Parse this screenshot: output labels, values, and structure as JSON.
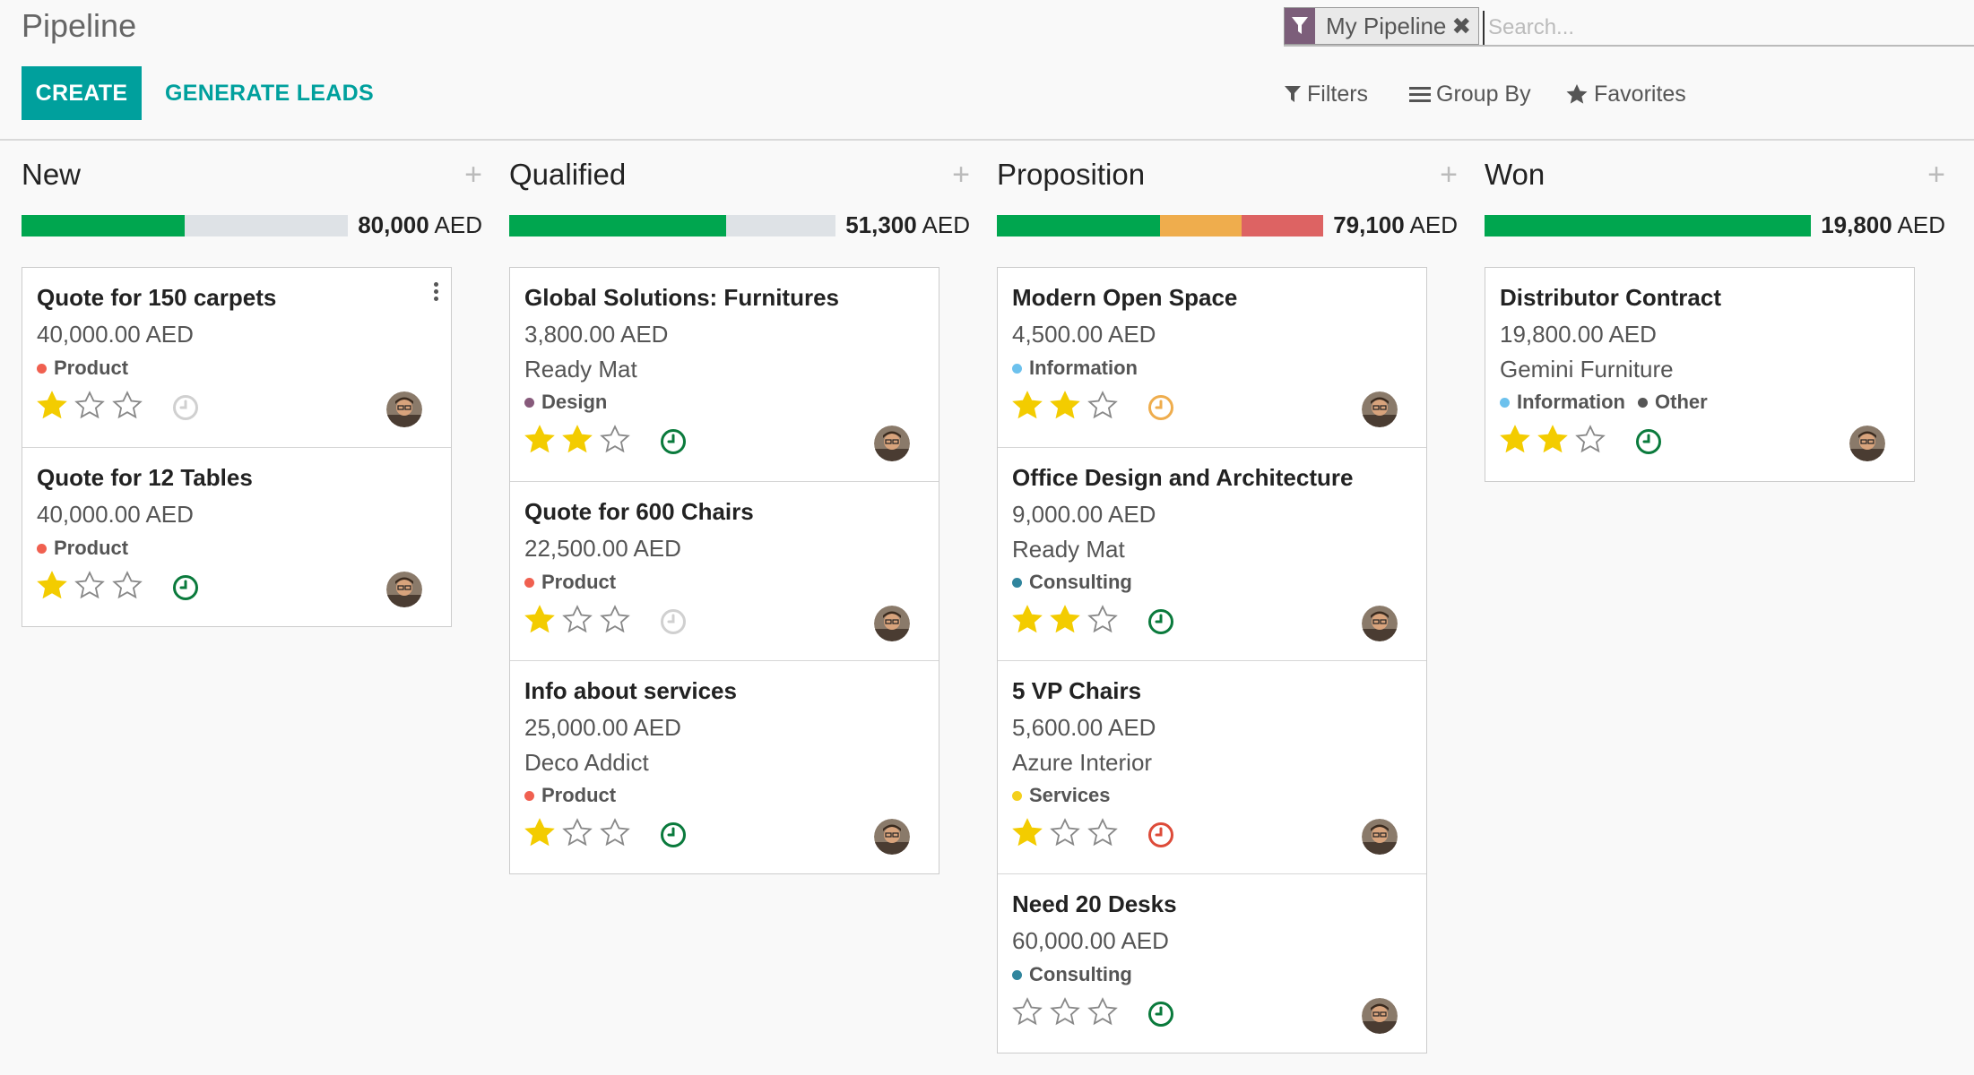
{
  "page": {
    "title": "Pipeline"
  },
  "search": {
    "facet_label": "My Pipeline",
    "facet_close": "✖",
    "placeholder": "Search..."
  },
  "toolbar": {
    "create_label": "CREATE",
    "generate_label": "GENERATE LEADS",
    "filters_label": "Filters",
    "groupby_label": "Group By",
    "favorites_label": "Favorites"
  },
  "colors": {
    "accent": "#00a09d",
    "facet": "#7c5e7a",
    "green": "#00a64f",
    "orange": "#efad4d",
    "red": "#dd6363",
    "star": "#f3cc00"
  },
  "columns": [
    {
      "title": "New",
      "plus": "+",
      "total": "80,000",
      "currency": "AED",
      "progress": [
        {
          "color": "green",
          "fraction": 0.5
        },
        {
          "color": "grey",
          "fraction": 0.5
        }
      ],
      "cards": [
        {
          "name": "Quote for 150 carpets",
          "amount": "40,000.00 AED",
          "partner": "",
          "tags": [
            {
              "label": "Product",
              "color": "#f06050"
            }
          ],
          "stars": 1,
          "activity": "none",
          "menu": true
        },
        {
          "name": "Quote for 12 Tables",
          "amount": "40,000.00 AED",
          "partner": "",
          "tags": [
            {
              "label": "Product",
              "color": "#f06050"
            }
          ],
          "stars": 1,
          "activity": "planned",
          "menu": false
        }
      ]
    },
    {
      "title": "Qualified",
      "plus": "+",
      "total": "51,300",
      "currency": "AED",
      "progress": [
        {
          "color": "green",
          "fraction": 0.666
        },
        {
          "color": "grey",
          "fraction": 0.334
        }
      ],
      "cards": [
        {
          "name": "Global Solutions: Furnitures",
          "amount": "3,800.00 AED",
          "partner": "Ready Mat",
          "tags": [
            {
              "label": "Design",
              "color": "#875a7b"
            }
          ],
          "stars": 2,
          "activity": "planned"
        },
        {
          "name": "Quote for 600 Chairs",
          "amount": "22,500.00 AED",
          "partner": "",
          "tags": [
            {
              "label": "Product",
              "color": "#f06050"
            }
          ],
          "stars": 1,
          "activity": "none"
        },
        {
          "name": "Info about services",
          "amount": "25,000.00 AED",
          "partner": "Deco Addict",
          "tags": [
            {
              "label": "Product",
              "color": "#f06050"
            }
          ],
          "stars": 1,
          "activity": "planned"
        }
      ]
    },
    {
      "title": "Proposition",
      "plus": "+",
      "total": "79,100",
      "currency": "AED",
      "progress": [
        {
          "color": "green",
          "fraction": 0.5
        },
        {
          "color": "orange",
          "fraction": 0.25
        },
        {
          "color": "red",
          "fraction": 0.25
        }
      ],
      "cards": [
        {
          "name": "Modern Open Space",
          "amount": "4,500.00 AED",
          "partner": "",
          "tags": [
            {
              "label": "Information",
              "color": "#6cc1ed"
            }
          ],
          "stars": 2,
          "activity": "today"
        },
        {
          "name": "Office Design and Architecture",
          "amount": "9,000.00 AED",
          "partner": "Ready Mat",
          "tags": [
            {
              "label": "Consulting",
              "color": "#30859d"
            }
          ],
          "stars": 2,
          "activity": "planned"
        },
        {
          "name": "5 VP Chairs",
          "amount": "5,600.00 AED",
          "partner": "Azure Interior",
          "tags": [
            {
              "label": "Services",
              "color": "#f4d01c"
            }
          ],
          "stars": 1,
          "activity": "overdue"
        },
        {
          "name": "Need 20 Desks",
          "amount": "60,000.00 AED",
          "partner": "",
          "tags": [
            {
              "label": "Consulting",
              "color": "#30859d"
            }
          ],
          "stars": 0,
          "activity": "planned"
        }
      ]
    },
    {
      "title": "Won",
      "plus": "+",
      "total": "19,800",
      "currency": "AED",
      "progress": [
        {
          "color": "green",
          "fraction": 1.0
        }
      ],
      "cards": [
        {
          "name": "Distributor Contract",
          "amount": "19,800.00 AED",
          "partner": "Gemini Furniture",
          "tags": [
            {
              "label": "Information",
              "color": "#6cc1ed"
            },
            {
              "label": "Other",
              "color": "#555555"
            }
          ],
          "stars": 2,
          "activity": "planned"
        }
      ]
    }
  ]
}
